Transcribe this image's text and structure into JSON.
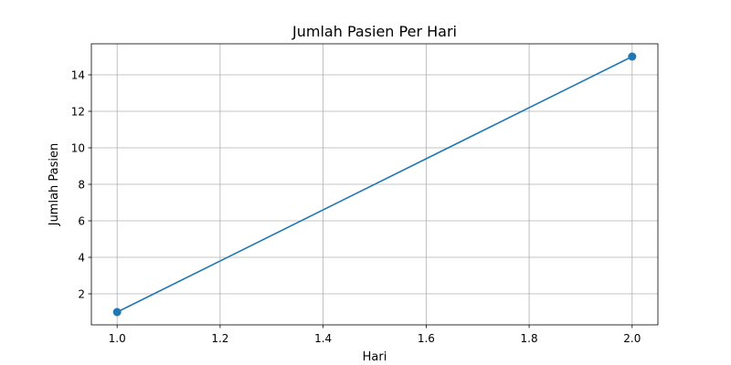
{
  "chart_data": {
    "type": "line",
    "title": "Jumlah Pasien Per Hari",
    "xlabel": "Hari",
    "ylabel": "Jumlah Pasien",
    "x_ticks": [
      "1.0",
      "1.2",
      "1.4",
      "1.6",
      "1.8",
      "2.0"
    ],
    "y_ticks": [
      "2",
      "4",
      "6",
      "8",
      "10",
      "12",
      "14"
    ],
    "xlim": [
      0.95,
      2.05
    ],
    "ylim": [
      0.3,
      15.7
    ],
    "grid": true,
    "series": [
      {
        "x": [
          1,
          2
        ],
        "y": [
          1,
          15
        ],
        "color": "#1f77b4",
        "marker": "circle"
      }
    ]
  }
}
